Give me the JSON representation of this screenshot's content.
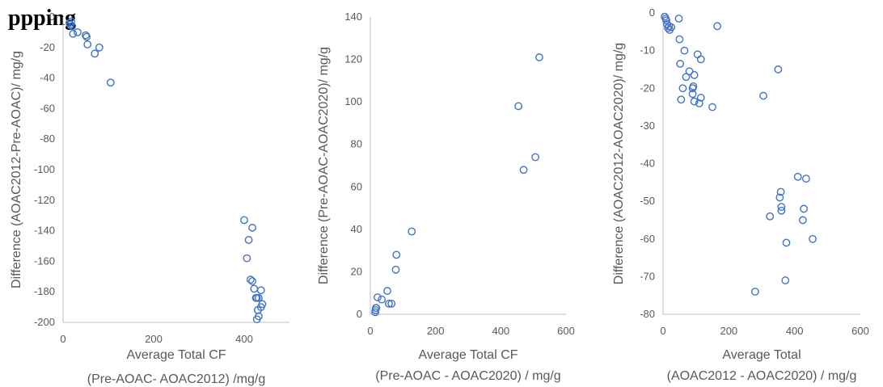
{
  "heading": "ppping",
  "colors": {
    "marker": "#4472c4",
    "axis": "#bfbfbf",
    "text": "#595959"
  },
  "chart_data": [
    {
      "type": "scatter",
      "title": "",
      "xlabel_lines": [
        "Average Total CF",
        "(Pre-AOAC- AOAC2012) /mg/g"
      ],
      "ylabel": "Difference (AOAC2012-Pre-AOAC)/ mg/g",
      "xlim": [
        0,
        500
      ],
      "ylim": [
        -200,
        0
      ],
      "xticks": [
        0,
        200,
        400
      ],
      "yticks": [
        0,
        -20,
        -40,
        -60,
        -80,
        -100,
        -120,
        -140,
        -160,
        -180,
        -200
      ],
      "grid": false,
      "series": [
        {
          "x": [
            14,
            16,
            18,
            20,
            22,
            32,
            50,
            52,
            54,
            70,
            80,
            105,
            400,
            418,
            410,
            406,
            414,
            418,
            422,
            426,
            428,
            432,
            437,
            437,
            440,
            430,
            432,
            428
          ],
          "y": [
            -4,
            -5,
            -3,
            -6,
            -11,
            -10,
            -12,
            -13,
            -18,
            -24,
            -20,
            -43,
            -133,
            -138,
            -146,
            -158,
            -172,
            -173,
            -178,
            -184,
            -184,
            -184,
            -179,
            -190,
            -188,
            -192,
            -196,
            -198
          ]
        }
      ]
    },
    {
      "type": "scatter",
      "title": "",
      "xlabel_lines": [
        "Average Total CF",
        "(Pre-AOAC - AOAC2020) / mg/g"
      ],
      "ylabel": "Difference (Pre-AOAC-AOAC2020)/ mg/g",
      "xlim": [
        0,
        600
      ],
      "ylim": [
        0,
        140
      ],
      "xticks": [
        0,
        200,
        400,
        600
      ],
      "yticks": [
        0,
        20,
        40,
        60,
        80,
        100,
        120,
        140
      ],
      "grid": false,
      "series": [
        {
          "x": [
            15,
            16,
            17,
            18,
            22,
            35,
            52,
            57,
            65,
            78,
            80,
            127,
            454,
            470,
            506,
            518
          ],
          "y": [
            1,
            2,
            3,
            3,
            8,
            7,
            11,
            5,
            5,
            21,
            28,
            39,
            98,
            68,
            74,
            121
          ]
        }
      ]
    },
    {
      "type": "scatter",
      "title": "",
      "xlabel_lines": [
        "Average Total",
        "(AOAC2012 - AOAC2020) / mg/g"
      ],
      "ylabel": "Difference (AOAC2012-AOAC2020)/ mg/g",
      "xlim": [
        0,
        600
      ],
      "ylim": [
        -80,
        0
      ],
      "xticks": [
        0,
        200,
        400,
        600
      ],
      "yticks": [
        0,
        -10,
        -20,
        -30,
        -40,
        -50,
        -60,
        -70,
        -80
      ],
      "grid": false,
      "series": [
        {
          "x": [
            5,
            8,
            10,
            12,
            15,
            18,
            20,
            25,
            48,
            50,
            52,
            55,
            60,
            65,
            70,
            80,
            90,
            90,
            92,
            95,
            95,
            105,
            110,
            115,
            115,
            150,
            165,
            280,
            305,
            325,
            350,
            355,
            358,
            360,
            360,
            372,
            375,
            410,
            425,
            428,
            435,
            455
          ],
          "y": [
            -1,
            -1.5,
            -2,
            -3,
            -4,
            -3.5,
            -4.5,
            -3.8,
            -1.5,
            -7,
            -13.5,
            -23,
            -20,
            -10,
            -17,
            -15.5,
            -20,
            -21.5,
            -19.5,
            -16.5,
            -23.5,
            -11,
            -24,
            -22.5,
            -12.3,
            -25,
            -3.5,
            -74,
            -22,
            -54,
            -15,
            -49,
            -47.5,
            -51.5,
            -52.5,
            -71,
            -61,
            -43.5,
            -55,
            -52,
            -44,
            -60
          ]
        }
      ]
    }
  ]
}
